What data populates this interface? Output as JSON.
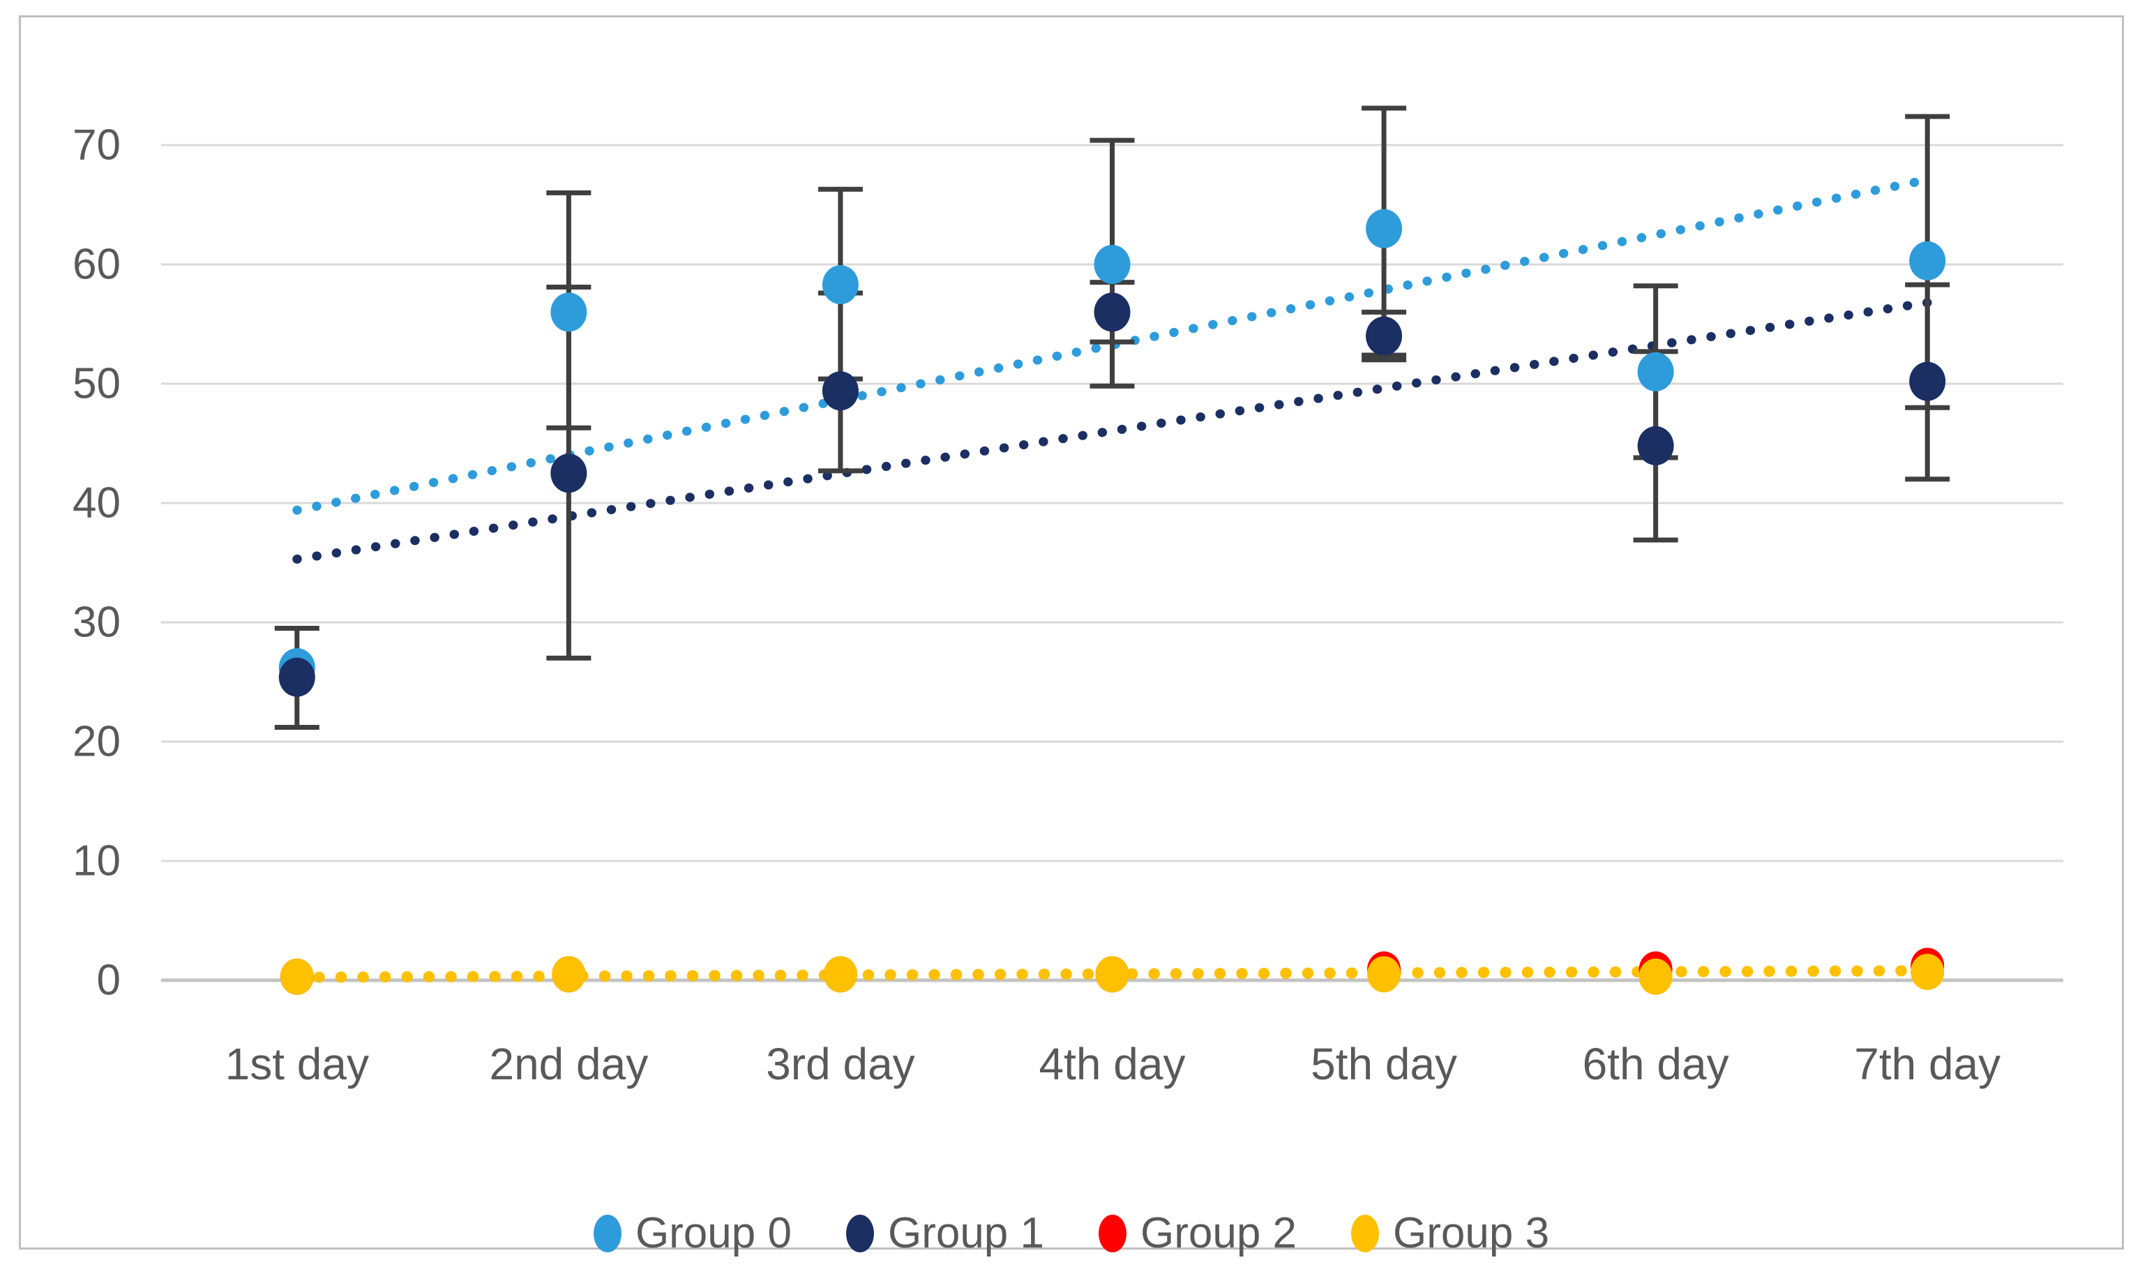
{
  "window": {
    "background": "#FFFFFF",
    "border_color": "#BFBFBF"
  },
  "chart_data": {
    "type": "scatter",
    "title": "",
    "xlabel": "",
    "ylabel": "",
    "categories": [
      "1st day",
      "2nd day",
      "3rd day",
      "4th day",
      "5th day",
      "6th day",
      "7th day"
    ],
    "y_ticks": [
      0,
      10,
      20,
      30,
      40,
      50,
      60,
      70
    ],
    "ylim": [
      0,
      75
    ],
    "grid": "horizontal-only",
    "legend_position": "bottom-center",
    "series": [
      {
        "name": "Group 0",
        "color": "#2E9CDB",
        "marker": "circle",
        "values": [
          26.2,
          56,
          58.3,
          60,
          63,
          51,
          60.3
        ],
        "err_lo": [
          null,
          46.3,
          50.4,
          49.8,
          52.4,
          43.8,
          48.0
        ],
        "err_hi": [
          null,
          66.0,
          66.3,
          70.4,
          73.1,
          58.2,
          72.4
        ],
        "trendline": {
          "style": "dotted",
          "start_value": 39.4,
          "end_value": 67.1
        }
      },
      {
        "name": "Group 1",
        "color": "#1B2F63",
        "marker": "circle",
        "values": [
          25.4,
          42.5,
          49.4,
          56,
          54,
          44.8,
          50.2
        ],
        "err_lo": [
          21.2,
          27.0,
          42.7,
          53.5,
          52.0,
          36.9,
          42.0
        ],
        "err_hi": [
          29.5,
          58.1,
          57.6,
          58.5,
          56.0,
          52.7,
          58.3
        ],
        "trendline": {
          "style": "dotted",
          "start_value": 35.3,
          "end_value": 56.8
        }
      },
      {
        "name": "Group 2",
        "color": "#FF0000",
        "marker": "circle",
        "values": [
          0.3,
          0.5,
          0.5,
          0.5,
          0.9,
          0.9,
          1.2
        ],
        "err_lo": [
          null,
          null,
          null,
          null,
          null,
          null,
          null
        ],
        "err_hi": [
          null,
          null,
          null,
          null,
          null,
          null,
          null
        ]
      },
      {
        "name": "Group 3",
        "color": "#FFC000",
        "marker": "circle",
        "values": [
          0.3,
          0.5,
          0.5,
          0.5,
          0.5,
          0.3,
          0.7
        ],
        "err_lo": [
          null,
          null,
          null,
          null,
          null,
          null,
          null
        ],
        "err_hi": [
          null,
          null,
          null,
          null,
          null,
          null,
          null
        ],
        "trendline": {
          "style": "dotted",
          "start_value": 0.25,
          "end_value": 0.8
        }
      }
    ],
    "style": {
      "error_bar_color": "#3F3F3F",
      "gridline_color": "#D9D9D9",
      "zero_line_color": "#C3C3C3",
      "tick_text_color": "#595959"
    }
  }
}
